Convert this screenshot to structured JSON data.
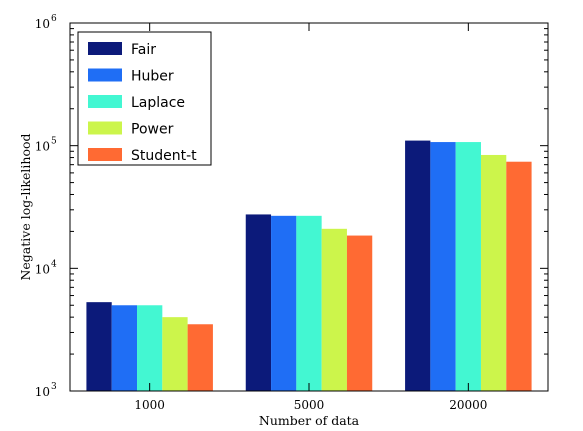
{
  "chart_data": {
    "type": "bar",
    "title": "",
    "xlabel": "Number of data",
    "ylabel": "Negative log-likelihood",
    "yscale": "log",
    "ylim": [
      1000,
      1000000
    ],
    "yticks": [
      {
        "value": 1000,
        "base": "10",
        "exp": "3"
      },
      {
        "value": 10000,
        "base": "10",
        "exp": "4"
      },
      {
        "value": 100000,
        "base": "10",
        "exp": "5"
      },
      {
        "value": 1000000,
        "base": "10",
        "exp": "6"
      }
    ],
    "categories": [
      "1000",
      "5000",
      "20000"
    ],
    "legend_position": "top-left",
    "grid": false,
    "series": [
      {
        "name": "Fair",
        "color": "#0c1a7a",
        "values": [
          5300,
          27500,
          110000
        ]
      },
      {
        "name": "Huber",
        "color": "#1f6ef5",
        "values": [
          5000,
          26800,
          107000
        ]
      },
      {
        "name": "Laplace",
        "color": "#43f7d2",
        "values": [
          5000,
          26800,
          107000
        ]
      },
      {
        "name": "Power",
        "color": "#ccf54b",
        "values": [
          4000,
          21000,
          84000
        ]
      },
      {
        "name": "Student-t",
        "color": "#ff6a33",
        "values": [
          3500,
          18500,
          74000
        ]
      }
    ]
  }
}
